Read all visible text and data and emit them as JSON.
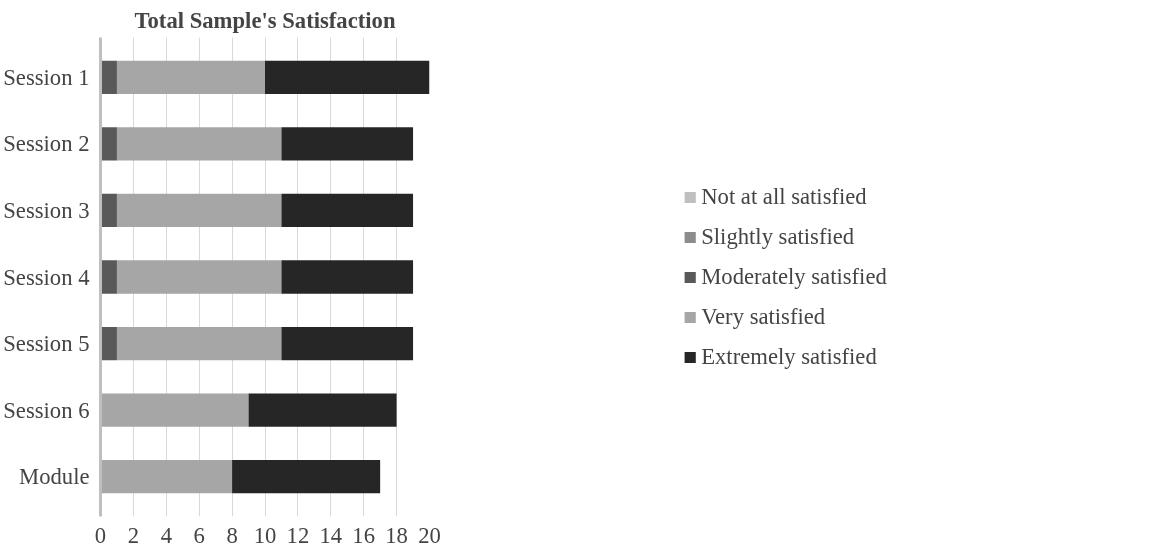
{
  "chart_data": {
    "type": "bar",
    "orientation": "horizontal",
    "stacked": true,
    "title": "Total Sample's Satisfaction",
    "categories": [
      "Session 1",
      "Session 2",
      "Session 3",
      "Session 4",
      "Session 5",
      "Session 6",
      "Module"
    ],
    "series": [
      {
        "name": "Not at all satisfied",
        "color": "#bfbfbf",
        "values": [
          0,
          0,
          0,
          0,
          0,
          0,
          0
        ]
      },
      {
        "name": "Slightly satisfied",
        "color": "#8c8c8c",
        "values": [
          0,
          0,
          0,
          0,
          0,
          0,
          0
        ]
      },
      {
        "name": "Moderately satisfied",
        "color": "#595959",
        "values": [
          1,
          1,
          1,
          1,
          1,
          0,
          0
        ]
      },
      {
        "name": "Very satisfied",
        "color": "#a6a6a6",
        "values": [
          9,
          10,
          10,
          10,
          10,
          9,
          8
        ]
      },
      {
        "name": "Extremely satisfied",
        "color": "#262626",
        "values": [
          10,
          8,
          8,
          8,
          8,
          9,
          9
        ]
      }
    ],
    "xlim": [
      0,
      20
    ],
    "xticks": [
      0,
      2,
      4,
      6,
      8,
      10,
      12,
      14,
      16,
      18,
      20
    ],
    "grid": "x",
    "legend": "right"
  }
}
